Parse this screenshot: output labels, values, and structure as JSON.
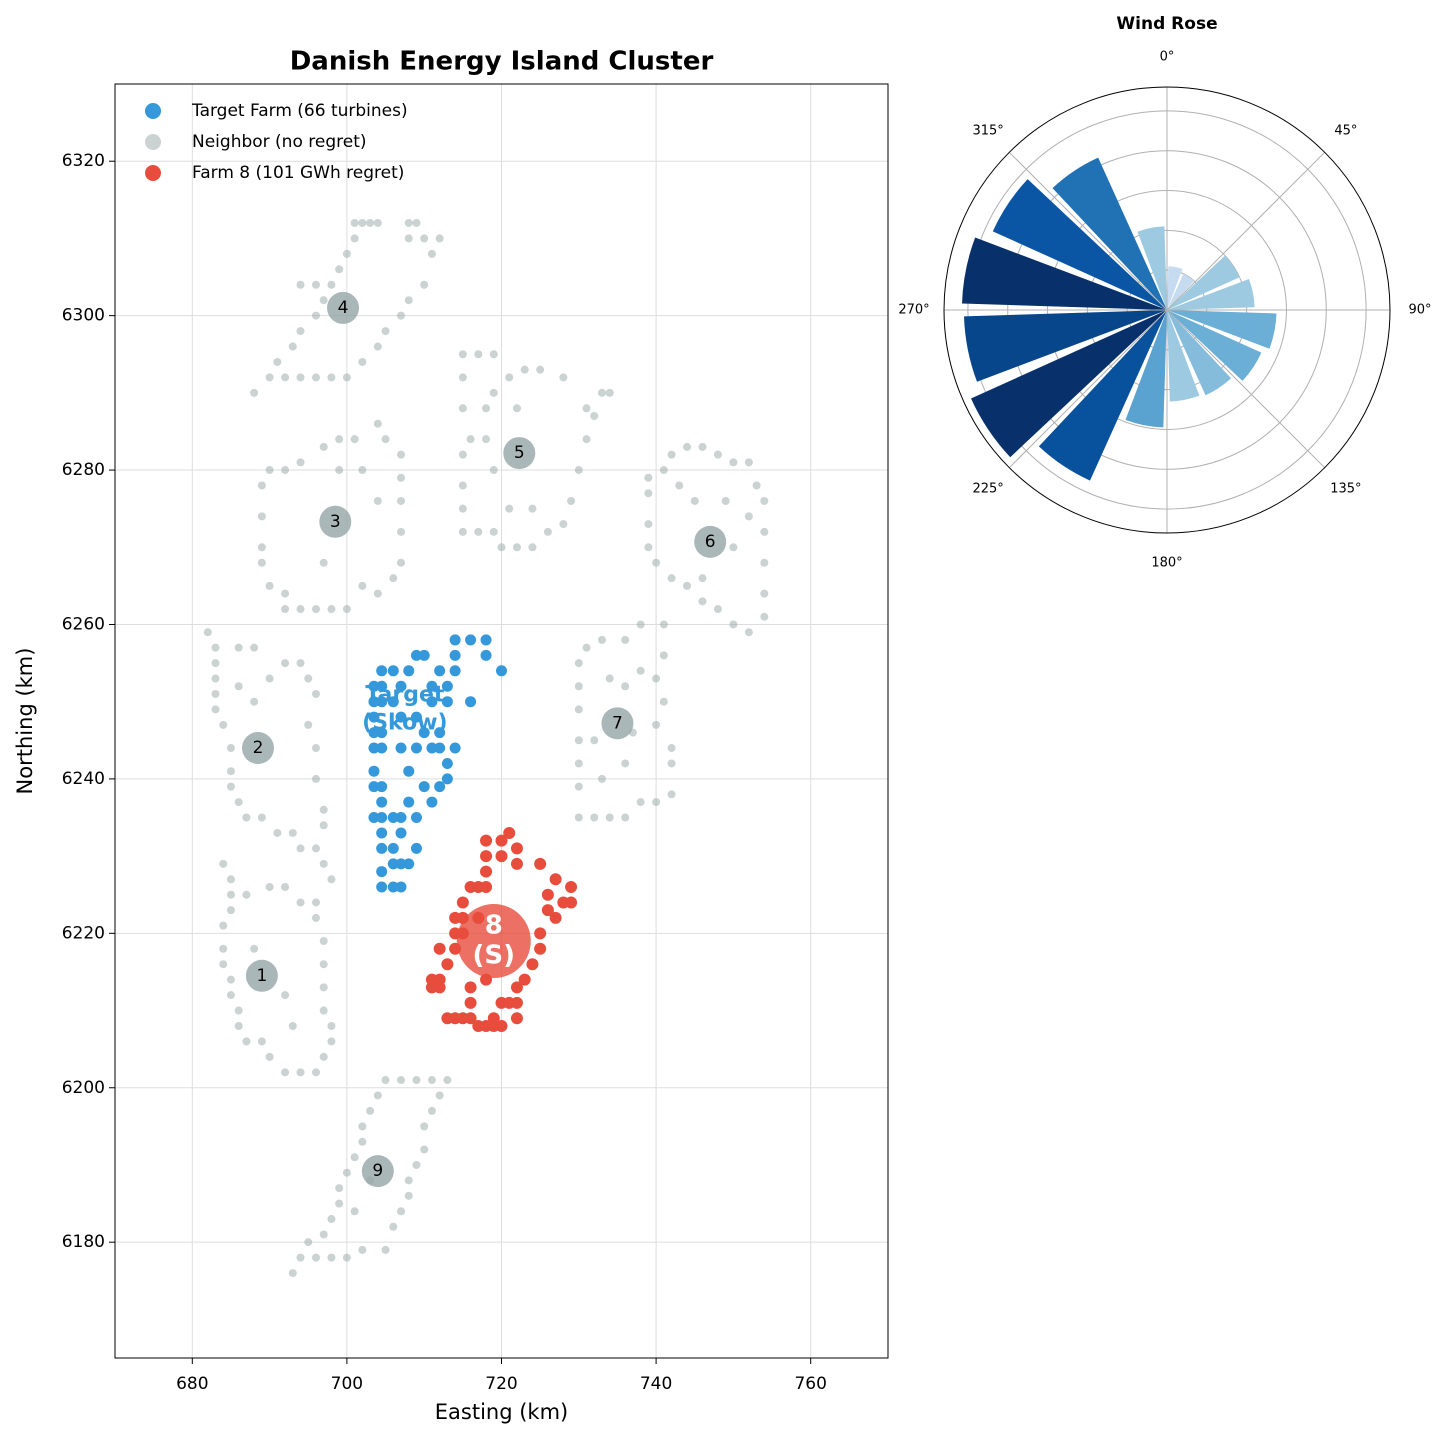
{
  "chart_data": [
    {
      "type": "scatter",
      "title": "Danish Energy Island Cluster",
      "xlabel": "Easting (km)",
      "ylabel": "Northing (km)",
      "xlim": [
        670,
        770
      ],
      "ylim": [
        6165,
        6330
      ],
      "xticks": [
        680,
        700,
        720,
        740,
        760
      ],
      "yticks": [
        6180,
        6200,
        6220,
        6240,
        6260,
        6280,
        6300,
        6320
      ],
      "grid": true,
      "legend": "upper left",
      "series": [
        {
          "name": "Target Farm (66 turbines)",
          "color": "#3498db",
          "x": [
            703.5,
            703.5,
            703.5,
            703.5,
            703.5,
            703.5,
            703.5,
            703.5,
            704.5,
            704.5,
            704.5,
            704.5,
            704.5,
            704.5,
            704.5,
            704.5,
            704.5,
            704.5,
            704.5,
            704.5,
            706,
            706,
            706,
            706,
            706,
            706,
            707,
            707,
            707,
            707,
            707,
            707,
            707,
            708,
            708,
            708,
            708,
            709,
            709,
            709,
            709,
            709,
            710,
            710,
            710,
            711,
            711,
            711,
            711,
            712,
            712,
            712,
            712,
            713,
            713,
            713,
            713,
            714,
            714,
            714,
            714,
            716,
            716,
            718,
            718,
            720
          ],
          "y": [
            6235,
            6239,
            6241,
            6244,
            6246,
            6248,
            6250,
            6252,
            6226,
            6228,
            6231,
            6233,
            6235,
            6237,
            6239,
            6244,
            6246,
            6250,
            6252,
            6254,
            6226,
            6229,
            6231,
            6235,
            6250,
            6254,
            6226,
            6229,
            6233,
            6235,
            6244,
            6248,
            6252,
            6229,
            6237,
            6241,
            6254,
            6231,
            6235,
            6244,
            6248,
            6256,
            6239,
            6246,
            6256,
            6237,
            6244,
            6252,
            6250,
            6239,
            6244,
            6246,
            6254,
            6240,
            6242,
            6250,
            6252,
            6244,
            6254,
            6256,
            6258,
            6250,
            6258,
            6256,
            6258,
            6254
          ]
        },
        {
          "name": "Neighbor (no regret)",
          "color": "#95a5a6",
          "x": [
            688,
            690,
            692,
            694,
            696,
            691,
            693,
            694,
            696,
            697,
            698,
            699,
            700,
            701,
            701,
            702,
            703,
            704,
            708,
            709,
            708,
            710,
            712,
            711,
            710,
            708,
            707,
            705,
            704,
            702,
            700,
            698,
            694,
            696,
            692,
            694,
            696,
            698,
            700,
            702,
            704,
            706,
            707,
            707,
            707,
            707,
            707,
            705,
            704,
            701,
            699,
            697,
            694,
            692,
            690,
            689,
            689,
            689,
            689,
            690,
            692,
            699,
            702,
            704,
            697,
            715,
            717,
            719,
            715,
            715,
            716,
            715,
            715,
            715,
            715,
            717,
            719,
            720,
            722,
            724,
            726,
            728,
            729,
            730,
            731,
            732,
            733,
            734,
            731,
            728,
            725,
            723,
            721,
            719,
            718,
            718,
            719,
            721,
            724,
            722,
            742,
            744,
            746,
            748,
            750,
            752,
            753,
            754,
            754,
            754,
            754,
            754,
            752,
            750,
            748,
            746,
            744,
            742,
            740,
            739,
            739,
            739,
            739,
            741,
            743,
            745,
            749,
            752,
            750,
            746,
            730,
            732,
            734,
            736,
            738,
            740,
            742,
            742,
            742,
            740,
            741,
            740,
            741,
            741,
            738,
            736,
            733,
            731,
            730,
            730,
            730,
            730,
            730,
            730,
            733,
            736,
            737,
            736,
            738,
            734,
            732,
            682,
            683,
            683,
            683,
            683,
            683,
            684,
            685,
            685,
            685,
            686,
            687,
            689,
            691,
            693,
            694,
            696,
            697,
            698,
            697,
            697,
            696,
            696,
            695,
            696,
            695,
            694,
            692,
            690,
            688,
            686,
            688,
            686,
            684,
            685,
            685,
            685,
            684,
            684,
            684,
            685,
            685,
            686,
            686,
            687,
            689,
            690,
            692,
            694,
            696,
            697,
            698,
            698,
            697,
            697,
            697,
            697,
            696,
            696,
            694,
            692,
            690,
            687,
            688,
            692,
            693,
            693,
            694,
            696,
            698,
            700,
            695,
            697,
            698,
            699,
            699,
            700,
            701,
            702,
            702,
            703,
            704,
            705,
            707,
            709,
            711,
            713,
            712,
            711,
            710,
            710,
            709,
            708,
            708,
            707,
            706,
            705,
            702,
            703,
            701
          ],
          "y": [
            6290,
            6292,
            6292,
            6292,
            6292,
            6294,
            6296,
            6298,
            6300,
            6302,
            6304,
            6306,
            6308,
            6310,
            6312,
            6312,
            6312,
            6312,
            6312,
            6312,
            6310,
            6310,
            6310,
            6308,
            6304,
            6302,
            6300,
            6298,
            6296,
            6294,
            6292,
            6292,
            6304,
            6304,
            6262,
            6262,
            6262,
            6262,
            6262,
            6265,
            6264,
            6266,
            6268,
            6272,
            6276,
            6279,
            6282,
            6284,
            6286,
            6284,
            6284,
            6283,
            6281,
            6280,
            6280,
            6278,
            6274,
            6270,
            6268,
            6265,
            6264,
            6280,
            6280,
            6276,
            6268,
            6295,
            6295,
            6295,
            6292,
            6288,
            6284,
            6282,
            6278,
            6275,
            6272,
            6272,
            6272,
            6270,
            6270,
            6270,
            6272,
            6273,
            6276,
            6280,
            6284,
            6287,
            6290,
            6290,
            6288,
            6292,
            6293,
            6293,
            6292,
            6290,
            6288,
            6284,
            6280,
            6275,
            6275,
            6288,
            6282,
            6283,
            6283,
            6282,
            6281,
            6281,
            6278,
            6276,
            6272,
            6268,
            6264,
            6261,
            6259,
            6260,
            6262,
            6263,
            6265,
            6266,
            6268,
            6270,
            6273,
            6277,
            6279,
            6280,
            6278,
            6276,
            6276,
            6274,
            6270,
            6266,
            6235,
            6235,
            6235,
            6235,
            6237,
            6237,
            6238,
            6242,
            6244,
            6247,
            6250,
            6253,
            6256,
            6260,
            6260,
            6258,
            6258,
            6257,
            6255,
            6252,
            6249,
            6245,
            6242,
            6239,
            6240,
            6242,
            6246,
            6252,
            6254,
            6253,
            6245,
            6259,
            6257,
            6255,
            6253,
            6251,
            6249,
            6247,
            6244,
            6241,
            6239,
            6237,
            6235,
            6235,
            6233,
            6233,
            6231,
            6231,
            6229,
            6227,
            6234,
            6236,
            6240,
            6244,
            6247,
            6251,
            6253,
            6255,
            6255,
            6253,
            6250,
            6252,
            6257,
            6257,
            6229,
            6227,
            6225,
            6223,
            6221,
            6218,
            6216,
            6214,
            6212,
            6210,
            6208,
            6206,
            6206,
            6204,
            6202,
            6202,
            6202,
            6204,
            6206,
            6208,
            6210,
            6213,
            6216,
            6219,
            6222,
            6224,
            6224,
            6226,
            6226,
            6225,
            6218,
            6212,
            6208,
            6176,
            6178,
            6178,
            6178,
            6178,
            6180,
            6181,
            6183,
            6185,
            6187,
            6189,
            6191,
            6193,
            6195,
            6197,
            6199,
            6201,
            6201,
            6201,
            6201,
            6201,
            6199,
            6197,
            6195,
            6192,
            6190,
            6188,
            6186,
            6184,
            6182,
            6179,
            6179,
            6188,
            6184
          ]
        },
        {
          "name": "Farm 8 (101 GWh regret)",
          "color": "#e74c3c",
          "x": [
            711,
            711,
            712,
            712,
            712,
            713,
            713,
            714,
            714,
            714,
            714,
            715,
            715,
            715,
            715,
            716,
            716,
            716,
            716,
            717,
            717,
            717,
            718,
            718,
            718,
            718,
            718,
            718,
            719,
            719,
            720,
            720,
            720,
            720,
            721,
            721,
            722,
            722,
            722,
            722,
            722,
            723,
            724,
            725,
            725,
            725,
            726,
            726,
            727,
            727,
            728,
            729,
            729
          ],
          "y": [
            6213,
            6214,
            6213,
            6214,
            6218,
            6209,
            6216,
            6209,
            6218,
            6220,
            6222,
            6209,
            6220,
            6222,
            6224,
            6209,
            6211,
            6213,
            6226,
            6208,
            6222,
            6226,
            6208,
            6214,
            6226,
            6228,
            6230,
            6232,
            6208,
            6209,
            6208,
            6211,
            6230,
            6232,
            6233,
            6211,
            6209,
            6211,
            6213,
            6229,
            6231,
            6214,
            6216,
            6218,
            6220,
            6229,
            6223,
            6225,
            6222,
            6227,
            6224,
            6224,
            6226
          ]
        }
      ],
      "farm_markers": [
        {
          "lines": [
            "1"
          ],
          "x": 689,
          "y": 6214.5,
          "color": "#95a5a6"
        },
        {
          "lines": [
            "2"
          ],
          "x": 688.5,
          "y": 6244,
          "color": "#95a5a6"
        },
        {
          "lines": [
            "3"
          ],
          "x": 698.5,
          "y": 6273.3,
          "color": "#95a5a6"
        },
        {
          "lines": [
            "4"
          ],
          "x": 699.5,
          "y": 6301,
          "color": "#95a5a6"
        },
        {
          "lines": [
            "5"
          ],
          "x": 722.3,
          "y": 6282.2,
          "color": "#95a5a6"
        },
        {
          "lines": [
            "6"
          ],
          "x": 747,
          "y": 6270.7,
          "color": "#95a5a6"
        },
        {
          "lines": [
            "7"
          ],
          "x": 735,
          "y": 6247.2,
          "color": "#95a5a6"
        },
        {
          "lines": [
            "9"
          ],
          "x": 704,
          "y": 6189.2,
          "color": "#95a5a6"
        },
        {
          "lines": [
            "8",
            "(S)"
          ],
          "x": 719,
          "y": 6219,
          "color": "#e74c3c"
        }
      ],
      "annotations": [
        {
          "lines": [
            "Target",
            "(Skow)"
          ],
          "x": 707.5,
          "y": 6249,
          "color": "#3498db"
        }
      ]
    },
    {
      "type": "polar_bar",
      "title": "Wind Rose",
      "theta": [
        11.25,
        33.75,
        56.25,
        78.75,
        101.25,
        123.75,
        146.25,
        168.75,
        191.25,
        213.75,
        236.25,
        258.75,
        281.25,
        303.75,
        326.25,
        348.75
      ],
      "values": [
        1.1,
        1.0,
        2.0,
        2.2,
        2.75,
        2.6,
        2.35,
        2.3,
        2.95,
        4.7,
        5.4,
        5.1,
        5.15,
        4.8,
        4.2,
        2.1
      ],
      "colors": [
        "#c6dbef",
        "#c6dbef",
        "#9ecae1",
        "#9ecae1",
        "#6baed6",
        "#6baed6",
        "#85bcdc",
        "#9ecae1",
        "#5aa2d0",
        "#08519c",
        "#08306b",
        "#08468c",
        "#08306b",
        "#0b56a4",
        "#2171b5",
        "#9ecae1"
      ],
      "rlim": [
        0,
        5.6
      ],
      "rticks": [
        1,
        2,
        3,
        4,
        5
      ],
      "thetaticks": [
        {
          "value": 0,
          "label": "0°"
        },
        {
          "value": 45,
          "label": "45°"
        },
        {
          "value": 90,
          "label": "90°"
        },
        {
          "value": 135,
          "label": "135°"
        },
        {
          "value": 180,
          "label": "180°"
        },
        {
          "value": 225,
          "label": "225°"
        },
        {
          "value": 270,
          "label": "270°"
        },
        {
          "value": 315,
          "label": "315°"
        }
      ],
      "direction": "clockwise",
      "zero": "N",
      "grid": true
    }
  ]
}
